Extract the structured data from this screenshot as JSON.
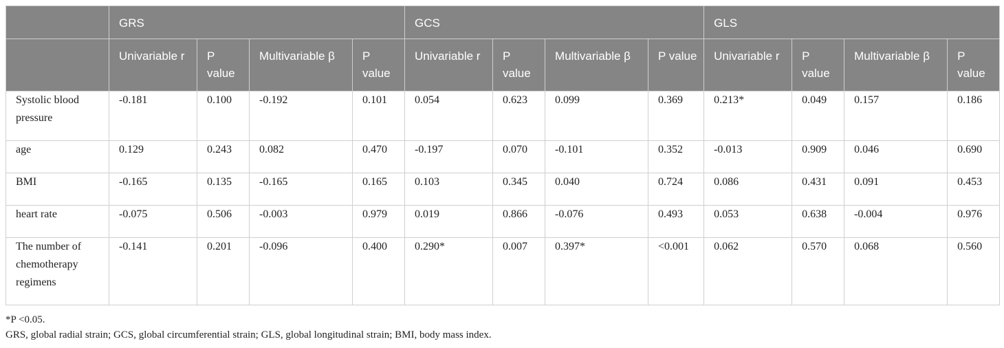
{
  "table": {
    "groups": [
      "GRS",
      "GCS",
      "GLS"
    ],
    "subheaders": [
      "Univariable r",
      "P value",
      "Multivariable β",
      "P value",
      "Univariable r",
      "P value",
      "Multivariable β",
      "P value",
      "Univariable r",
      "P value",
      "Multivariable β",
      "P value"
    ],
    "rows": [
      {
        "label": "Systolic blood pressure",
        "cells": [
          "-0.181",
          "0.100",
          "-0.192",
          "0.101",
          "0.054",
          "0.623",
          "0.099",
          "0.369",
          "0.213*",
          "0.049",
          "0.157",
          "0.186"
        ]
      },
      {
        "label": "age",
        "cells": [
          "0.129",
          "0.243",
          "0.082",
          "0.470",
          "-0.197",
          "0.070",
          "-0.101",
          "0.352",
          "-0.013",
          "0.909",
          "0.046",
          "0.690"
        ]
      },
      {
        "label": "BMI",
        "cells": [
          "-0.165",
          "0.135",
          "-0.165",
          "0.165",
          "0.103",
          "0.345",
          "0.040",
          "0.724",
          "0.086",
          "0.431",
          "0.091",
          "0.453"
        ]
      },
      {
        "label": "heart rate",
        "cells": [
          "-0.075",
          "0.506",
          "-0.003",
          "0.979",
          "0.019",
          "0.866",
          "-0.076",
          "0.493",
          "0.053",
          "0.638",
          "-0.004",
          "0.976"
        ]
      },
      {
        "label": "The number of chemotherapy regimens",
        "cells": [
          "-0.141",
          "0.201",
          "-0.096",
          "0.400",
          "0.290*",
          "0.007",
          "0.397*",
          "<0.001",
          "0.062",
          "0.570",
          "0.068",
          "0.560"
        ]
      }
    ]
  },
  "footnotes": [
    "*P <0.05.",
    "GRS, global radial strain; GCS, global circumferential strain; GLS, global longitudinal strain; BMI, body mass index."
  ],
  "colors": {
    "header_bg": "#858585",
    "header_text": "#ffffff",
    "border": "#cfcfcf"
  }
}
